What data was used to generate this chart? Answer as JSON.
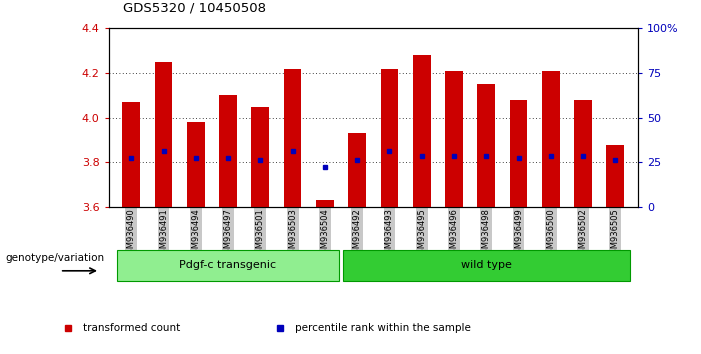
{
  "title": "GDS5320 / 10450508",
  "samples": [
    "GSM936490",
    "GSM936491",
    "GSM936494",
    "GSM936497",
    "GSM936501",
    "GSM936503",
    "GSM936504",
    "GSM936492",
    "GSM936493",
    "GSM936495",
    "GSM936496",
    "GSM936498",
    "GSM936499",
    "GSM936500",
    "GSM936502",
    "GSM936505"
  ],
  "bar_tops": [
    4.07,
    4.25,
    3.98,
    4.1,
    4.05,
    4.22,
    3.63,
    3.93,
    4.22,
    4.28,
    4.21,
    4.15,
    4.08,
    4.21,
    4.08,
    3.88
  ],
  "blue_dots": [
    3.82,
    3.85,
    3.82,
    3.82,
    3.81,
    3.85,
    3.78,
    3.81,
    3.85,
    3.83,
    3.83,
    3.83,
    3.82,
    3.83,
    3.83,
    3.81
  ],
  "bar_bottom": 3.6,
  "ylim": [
    3.6,
    4.4
  ],
  "ylim_right": [
    0,
    100
  ],
  "yticks_left": [
    3.6,
    3.8,
    4.0,
    4.2,
    4.4
  ],
  "yticks_right": [
    0,
    25,
    50,
    75,
    100
  ],
  "ytick_right_labels": [
    "0",
    "25",
    "50",
    "75",
    "100%"
  ],
  "group1_samples": 7,
  "group2_samples": 9,
  "group1_label": "Pdgf-c transgenic",
  "group2_label": "wild type",
  "group1_color": "#90EE90",
  "group2_color": "#33CC33",
  "bar_color": "#CC0000",
  "dot_color": "#0000BB",
  "ylabel_left_color": "#CC0000",
  "ylabel_right_color": "#0000BB",
  "grid_color": "#000000",
  "background_color": "#FFFFFF",
  "tick_bg_color": "#C8C8C8",
  "legend_items": [
    {
      "color": "#CC0000",
      "label": "transformed count"
    },
    {
      "color": "#0000BB",
      "label": "percentile rank within the sample"
    }
  ],
  "genotype_label": "genotype/variation",
  "bar_width": 0.55
}
